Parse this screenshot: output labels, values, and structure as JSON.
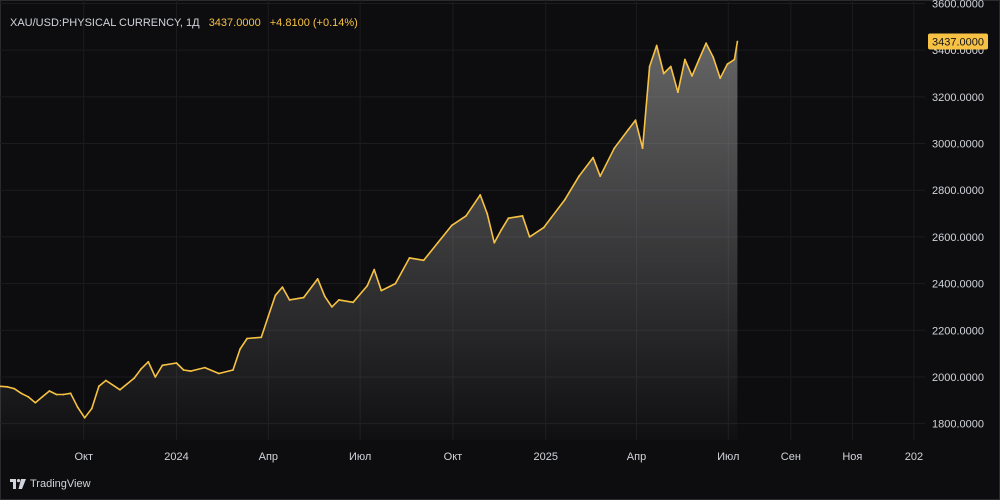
{
  "header": {
    "symbol": "XAU/USD:PHYSICAL CURRENCY, 1Д",
    "price": "3437.0000",
    "change": "+4.8100 (+0.14%)"
  },
  "price_tag": "3437.0000",
  "branding": {
    "name": "TradingView",
    "logo_icon": "tradingview-logo-icon"
  },
  "colors": {
    "background": "#0d0d0f",
    "line": "#f7c244",
    "grid": "#1c1c20",
    "axis_text": "#d1d4dc"
  },
  "chart_data": {
    "type": "area",
    "title": "XAU/USD:PHYSICAL CURRENCY, 1Д",
    "xlabel": "",
    "ylabel": "",
    "x_ticks": [
      {
        "label": "Окт",
        "date": "2023-10-01"
      },
      {
        "label": "2024",
        "date": "2024-01-01"
      },
      {
        "label": "Апр",
        "date": "2024-04-01"
      },
      {
        "label": "Июл",
        "date": "2024-07-01"
      },
      {
        "label": "Окт",
        "date": "2024-10-01"
      },
      {
        "label": "2025",
        "date": "2025-01-01"
      },
      {
        "label": "Апр",
        "date": "2025-04-01"
      },
      {
        "label": "Июл",
        "date": "2025-07-01"
      },
      {
        "label": "Сен",
        "date": "2025-09-01"
      },
      {
        "label": "Ноя",
        "date": "2025-11-01"
      },
      {
        "label": "202",
        "date": "2026-01-01"
      }
    ],
    "y_ticks": [
      "3600.0000",
      "3400.0000",
      "3200.0000",
      "3000.0000",
      "2800.0000",
      "2600.0000",
      "2400.0000",
      "2200.0000",
      "2000.0000",
      "1800.0000"
    ],
    "xlim": [
      "2023-07-10",
      "2026-01-12"
    ],
    "ylim": [
      1730,
      3615
    ],
    "grid": true,
    "series": [
      {
        "points": [
          [
            "2023-07-10",
            1960
          ],
          [
            "2023-07-17",
            1958
          ],
          [
            "2023-07-24",
            1950
          ],
          [
            "2023-07-31",
            1930
          ],
          [
            "2023-08-07",
            1915
          ],
          [
            "2023-08-14",
            1890
          ],
          [
            "2023-08-21",
            1915
          ],
          [
            "2023-08-28",
            1940
          ],
          [
            "2023-09-04",
            1925
          ],
          [
            "2023-09-11",
            1925
          ],
          [
            "2023-09-18",
            1930
          ],
          [
            "2023-09-25",
            1870
          ],
          [
            "2023-10-02",
            1825
          ],
          [
            "2023-10-09",
            1865
          ],
          [
            "2023-10-16",
            1960
          ],
          [
            "2023-10-23",
            1985
          ],
          [
            "2023-11-06",
            1945
          ],
          [
            "2023-11-20",
            1995
          ],
          [
            "2023-11-27",
            2035
          ],
          [
            "2023-12-04",
            2065
          ],
          [
            "2023-12-11",
            2000
          ],
          [
            "2023-12-18",
            2050
          ],
          [
            "2024-01-01",
            2060
          ],
          [
            "2024-01-08",
            2030
          ],
          [
            "2024-01-15",
            2025
          ],
          [
            "2024-01-29",
            2040
          ],
          [
            "2024-02-12",
            2015
          ],
          [
            "2024-02-26",
            2030
          ],
          [
            "2024-03-04",
            2120
          ],
          [
            "2024-03-11",
            2165
          ],
          [
            "2024-03-25",
            2170
          ],
          [
            "2024-04-01",
            2260
          ],
          [
            "2024-04-08",
            2350
          ],
          [
            "2024-04-15",
            2385
          ],
          [
            "2024-04-22",
            2330
          ],
          [
            "2024-05-06",
            2340
          ],
          [
            "2024-05-20",
            2420
          ],
          [
            "2024-05-27",
            2345
          ],
          [
            "2024-06-03",
            2300
          ],
          [
            "2024-06-10",
            2330
          ],
          [
            "2024-06-24",
            2320
          ],
          [
            "2024-07-08",
            2390
          ],
          [
            "2024-07-15",
            2460
          ],
          [
            "2024-07-22",
            2370
          ],
          [
            "2024-08-05",
            2400
          ],
          [
            "2024-08-19",
            2510
          ],
          [
            "2024-09-02",
            2500
          ],
          [
            "2024-09-16",
            2575
          ],
          [
            "2024-09-30",
            2650
          ],
          [
            "2024-10-14",
            2690
          ],
          [
            "2024-10-28",
            2780
          ],
          [
            "2024-11-04",
            2700
          ],
          [
            "2024-11-11",
            2575
          ],
          [
            "2024-11-18",
            2630
          ],
          [
            "2024-11-25",
            2680
          ],
          [
            "2024-12-09",
            2690
          ],
          [
            "2024-12-16",
            2600
          ],
          [
            "2024-12-30",
            2640
          ],
          [
            "2025-01-06",
            2680
          ],
          [
            "2025-01-20",
            2760
          ],
          [
            "2025-02-03",
            2860
          ],
          [
            "2025-02-17",
            2940
          ],
          [
            "2025-02-24",
            2860
          ],
          [
            "2025-03-10",
            2980
          ],
          [
            "2025-03-24",
            3060
          ],
          [
            "2025-03-31",
            3100
          ],
          [
            "2025-04-07",
            2980
          ],
          [
            "2025-04-14",
            3330
          ],
          [
            "2025-04-21",
            3420
          ],
          [
            "2025-04-28",
            3300
          ],
          [
            "2025-05-05",
            3330
          ],
          [
            "2025-05-12",
            3220
          ],
          [
            "2025-05-19",
            3360
          ],
          [
            "2025-05-26",
            3290
          ],
          [
            "2025-06-02",
            3360
          ],
          [
            "2025-06-09",
            3430
          ],
          [
            "2025-06-16",
            3370
          ],
          [
            "2025-06-23",
            3280
          ],
          [
            "2025-06-30",
            3340
          ],
          [
            "2025-07-07",
            3360
          ],
          [
            "2025-07-10",
            3437
          ]
        ]
      }
    ]
  }
}
